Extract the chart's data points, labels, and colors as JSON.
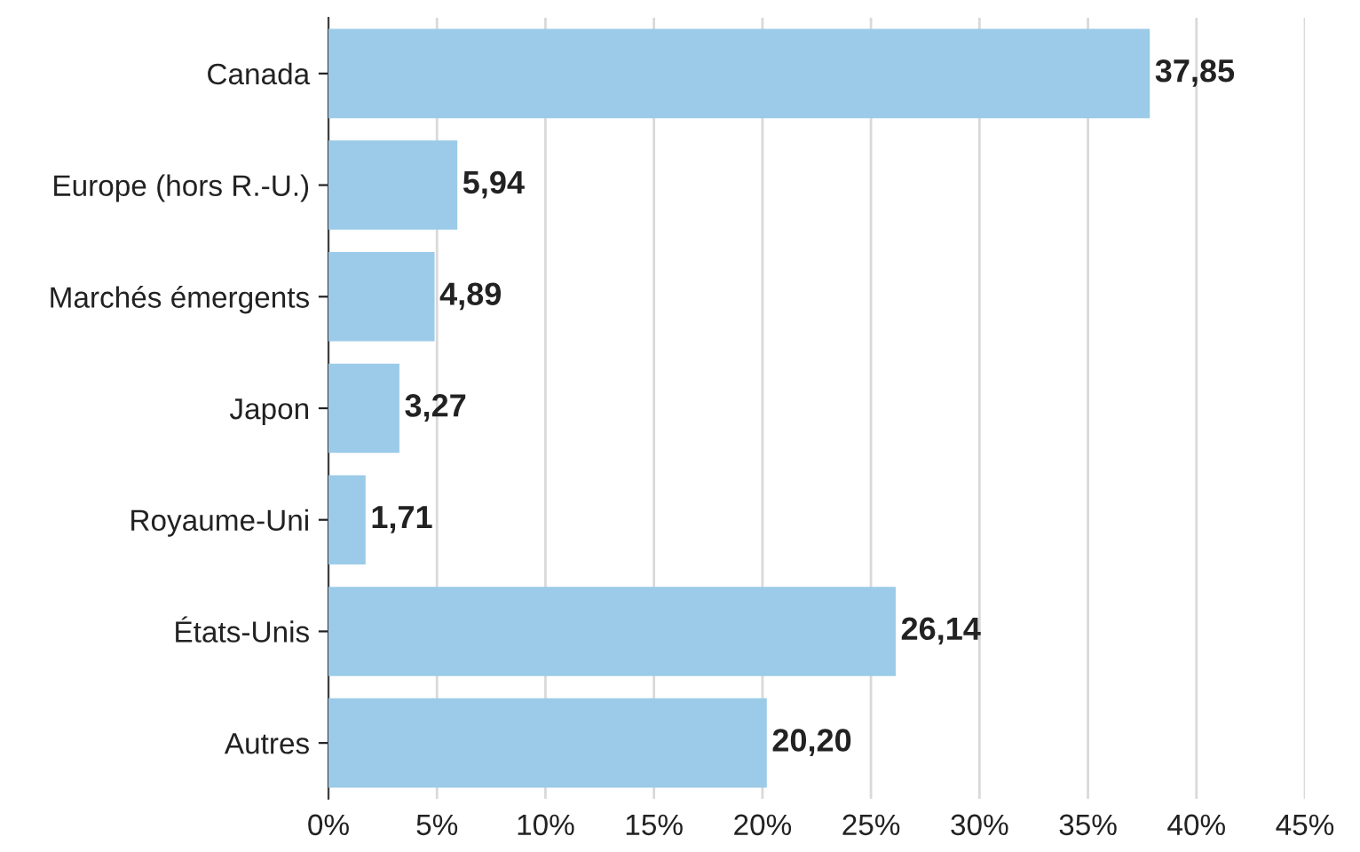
{
  "chart_data": {
    "type": "bar",
    "orientation": "horizontal",
    "categories": [
      "Canada",
      "Europe (hors R.-U.)",
      "Marchés émergents",
      "Japon",
      "Royaume-Uni",
      "États-Unis",
      "Autres"
    ],
    "values": [
      37.85,
      5.94,
      4.89,
      3.27,
      1.71,
      26.14,
      20.2
    ],
    "value_labels": [
      "37,85",
      "5,94",
      "4,89",
      "3,27",
      "1,71",
      "26,14",
      "20,20"
    ],
    "color": "#9bcbe8",
    "xlim": [
      0,
      45
    ],
    "xticks": [
      {
        "value": 0,
        "label": "0%"
      },
      {
        "value": 5,
        "label": "5%"
      },
      {
        "value": 10,
        "label": "10%"
      },
      {
        "value": 15,
        "label": "15%"
      },
      {
        "value": 20,
        "label": "20%"
      },
      {
        "value": 25,
        "label": "25%"
      },
      {
        "value": 30,
        "label": "30%"
      },
      {
        "value": 35,
        "label": "35%"
      },
      {
        "value": 40,
        "label": "40%"
      },
      {
        "value": 45,
        "label": "45%"
      }
    ],
    "grid": "x"
  }
}
